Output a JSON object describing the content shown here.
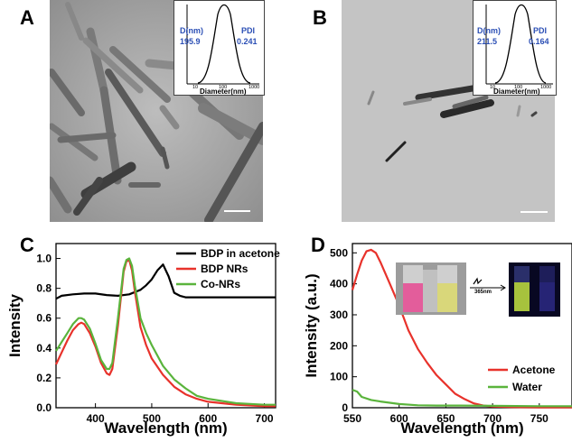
{
  "panels": {
    "a": {
      "letter": "A",
      "inset": {
        "d_label": "D(nm)",
        "d_value": "195.9",
        "pdi_label": "PDI",
        "pdi_value": "0.241",
        "xlabel": "Diameter(nm)",
        "ticks": [
          "10",
          "100",
          "1000"
        ]
      }
    },
    "b": {
      "letter": "B",
      "inset": {
        "d_label": "D(nm)",
        "d_value": "211.5",
        "pdi_label": "PDI",
        "pdi_value": "0.164",
        "xlabel": "Diameter(nm)",
        "ticks": [
          "10",
          "100",
          "1000"
        ]
      }
    },
    "c": {
      "letter": "C"
    },
    "d": {
      "letter": "D",
      "photo_label": "365nm"
    }
  },
  "chart_data": [
    {
      "type": "line",
      "panel": "C",
      "title": "",
      "xlabel": "Wavelength (nm)",
      "ylabel": "Intensity",
      "xlim": [
        330,
        720
      ],
      "ylim": [
        0.0,
        1.1
      ],
      "xticks": [
        400,
        500,
        600,
        700
      ],
      "yticks": [
        0.0,
        0.2,
        0.4,
        0.6,
        0.8,
        1.0
      ],
      "xtick_labels": [
        "400",
        "500",
        "600",
        "700"
      ],
      "ytick_labels": [
        "0.0",
        "0.2",
        "0.4",
        "0.6",
        "0.8",
        "1.0"
      ],
      "legend_position": "top-right",
      "series": [
        {
          "name": "BDP in acetone",
          "color": "#000000",
          "x": [
            330,
            340,
            360,
            380,
            400,
            420,
            440,
            460,
            480,
            490,
            500,
            510,
            520,
            530,
            540,
            550,
            560,
            580,
            600,
            650,
            700,
            720
          ],
          "y": [
            0.73,
            0.75,
            0.76,
            0.765,
            0.765,
            0.755,
            0.75,
            0.76,
            0.79,
            0.82,
            0.86,
            0.92,
            0.96,
            0.88,
            0.77,
            0.75,
            0.74,
            0.74,
            0.74,
            0.74,
            0.74,
            0.74
          ]
        },
        {
          "name": "BDP NRs",
          "color": "#e8322b",
          "x": [
            330,
            340,
            350,
            360,
            370,
            375,
            380,
            390,
            400,
            410,
            420,
            425,
            430,
            440,
            450,
            455,
            460,
            465,
            470,
            480,
            490,
            500,
            520,
            540,
            560,
            580,
            600,
            650,
            700,
            720
          ],
          "y": [
            0.29,
            0.37,
            0.45,
            0.52,
            0.56,
            0.57,
            0.56,
            0.5,
            0.41,
            0.3,
            0.23,
            0.22,
            0.26,
            0.55,
            0.91,
            0.98,
            0.99,
            0.92,
            0.78,
            0.54,
            0.42,
            0.33,
            0.22,
            0.14,
            0.09,
            0.06,
            0.04,
            0.02,
            0.01,
            0.01
          ]
        },
        {
          "name": "Co-NRs",
          "color": "#5ab43c",
          "x": [
            330,
            340,
            350,
            360,
            370,
            375,
            380,
            390,
            400,
            410,
            420,
            425,
            430,
            440,
            450,
            455,
            460,
            465,
            470,
            480,
            490,
            500,
            520,
            540,
            560,
            580,
            600,
            650,
            700,
            720
          ],
          "y": [
            0.38,
            0.44,
            0.5,
            0.56,
            0.6,
            0.6,
            0.59,
            0.53,
            0.43,
            0.32,
            0.26,
            0.26,
            0.3,
            0.6,
            0.93,
            0.99,
            1.0,
            0.95,
            0.82,
            0.6,
            0.5,
            0.42,
            0.28,
            0.19,
            0.13,
            0.08,
            0.06,
            0.03,
            0.02,
            0.02
          ]
        }
      ]
    },
    {
      "type": "line",
      "panel": "D",
      "title": "",
      "xlabel": "Wavelength (nm)",
      "ylabel": "Intensity (a.u.)",
      "xlim": [
        550,
        785
      ],
      "ylim": [
        0,
        530
      ],
      "xticks": [
        550,
        600,
        650,
        700,
        750
      ],
      "yticks": [
        0,
        100,
        200,
        300,
        400,
        500
      ],
      "xtick_labels": [
        "550",
        "600",
        "650",
        "700",
        "750"
      ],
      "ytick_labels": [
        "0",
        "100",
        "200",
        "300",
        "400",
        "500"
      ],
      "legend_position": "bottom-right",
      "series": [
        {
          "name": "Acetone",
          "color": "#e8322b",
          "x": [
            550,
            555,
            560,
            565,
            570,
            575,
            580,
            590,
            600,
            610,
            620,
            630,
            640,
            650,
            660,
            670,
            680,
            690,
            700,
            720,
            750,
            785
          ],
          "y": [
            380,
            430,
            475,
            505,
            510,
            500,
            470,
            400,
            330,
            250,
            190,
            145,
            105,
            75,
            45,
            28,
            14,
            7,
            4,
            2,
            1,
            1
          ]
        },
        {
          "name": "Water",
          "color": "#5ab43c",
          "x": [
            550,
            555,
            560,
            570,
            580,
            600,
            620,
            640,
            660,
            700,
            750,
            785
          ],
          "y": [
            58,
            52,
            35,
            25,
            20,
            12,
            8,
            7,
            7,
            6,
            5,
            5
          ]
        }
      ]
    }
  ]
}
